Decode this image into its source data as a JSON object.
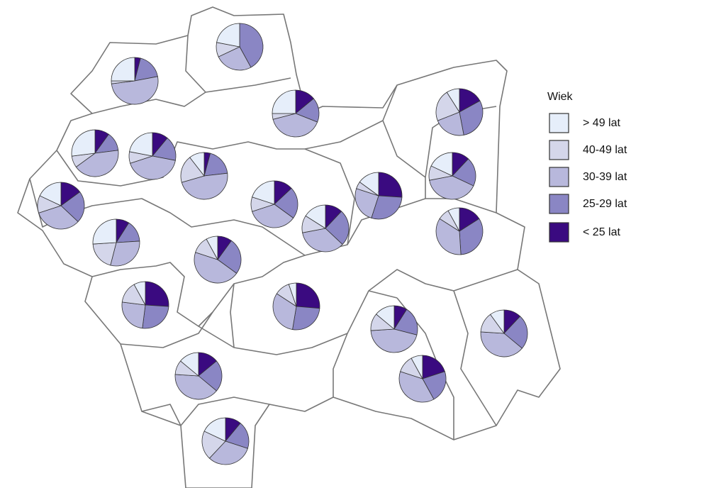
{
  "chart_data": {
    "type": "pie",
    "legend_title": "Wiek",
    "categories": [
      "> 49 lat",
      "40-49 lat",
      "30-39 lat",
      "25-29 lat",
      "< 25 lat"
    ],
    "colors": [
      "#e6eefa",
      "#d4d6ea",
      "#b8b8dc",
      "#8a86c4",
      "#3a0a80"
    ],
    "pies": [
      {
        "values": [
          22,
          10,
          26,
          42,
          0
        ]
      },
      {
        "values": [
          25,
          2,
          51,
          18,
          4
        ]
      },
      {
        "values": [
          25,
          4,
          40,
          17,
          14
        ]
      },
      {
        "values": [
          9,
          22,
          22,
          30,
          17
        ]
      },
      {
        "values": [
          27,
          8,
          42,
          13,
          10
        ]
      },
      {
        "values": [
          22,
          8,
          42,
          17,
          11
        ]
      },
      {
        "values": [
          10,
          18,
          45,
          18,
          4
        ]
      },
      {
        "values": [
          18,
          12,
          33,
          22,
          15
        ]
      },
      {
        "values": [
          20,
          10,
          35,
          22,
          13
        ]
      },
      {
        "values": [
          15,
          5,
          25,
          29,
          26
        ]
      },
      {
        "values": [
          18,
          10,
          40,
          20,
          12
        ]
      },
      {
        "values": [
          8,
          8,
          35,
          33,
          16
        ]
      },
      {
        "values": [
          26,
          20,
          30,
          15,
          9
        ]
      },
      {
        "values": [
          16,
          12,
          35,
          25,
          12
        ]
      },
      {
        "values": [
          8,
          12,
          45,
          25,
          10
        ]
      },
      {
        "values": [
          8,
          15,
          25,
          26,
          26
        ]
      },
      {
        "values": [
          5,
          10,
          30,
          25,
          25
        ]
      },
      {
        "values": [
          14,
          12,
          45,
          20,
          9
        ]
      },
      {
        "values": [
          10,
          14,
          40,
          24,
          12
        ]
      },
      {
        "values": [
          14,
          10,
          40,
          22,
          14
        ]
      },
      {
        "values": [
          8,
          12,
          38,
          22,
          20
        ]
      },
      {
        "values": [
          18,
          20,
          32,
          19,
          11
        ]
      }
    ]
  }
}
